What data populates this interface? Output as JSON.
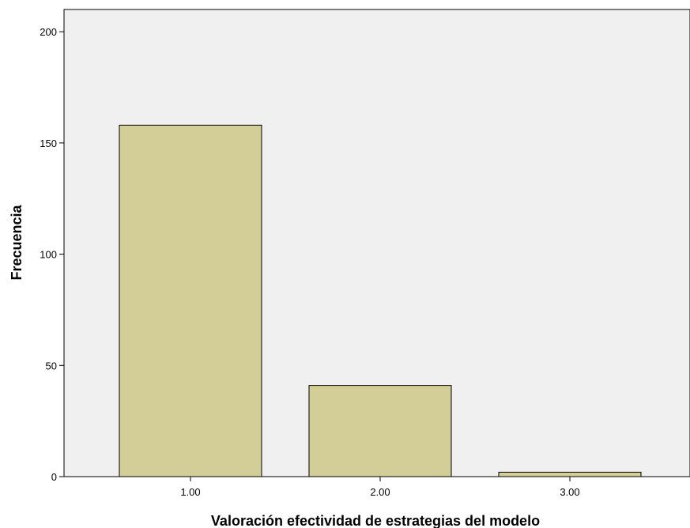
{
  "chart_data": {
    "type": "bar",
    "title": "",
    "xlabel": "Valoración efectividad de estrategias del modelo",
    "ylabel": "Frecuencia",
    "categories": [
      "1.00",
      "2.00",
      "3.00"
    ],
    "values": [
      158,
      41,
      2
    ],
    "ylim": [
      0,
      210
    ],
    "yticks": [
      "0",
      "50",
      "100",
      "150",
      "200"
    ],
    "grid": false,
    "legend": "none",
    "colors": {
      "plot_background": "#f0f0f0",
      "bar_fill": "#d3ce97",
      "bar_stroke": "#000000"
    }
  }
}
